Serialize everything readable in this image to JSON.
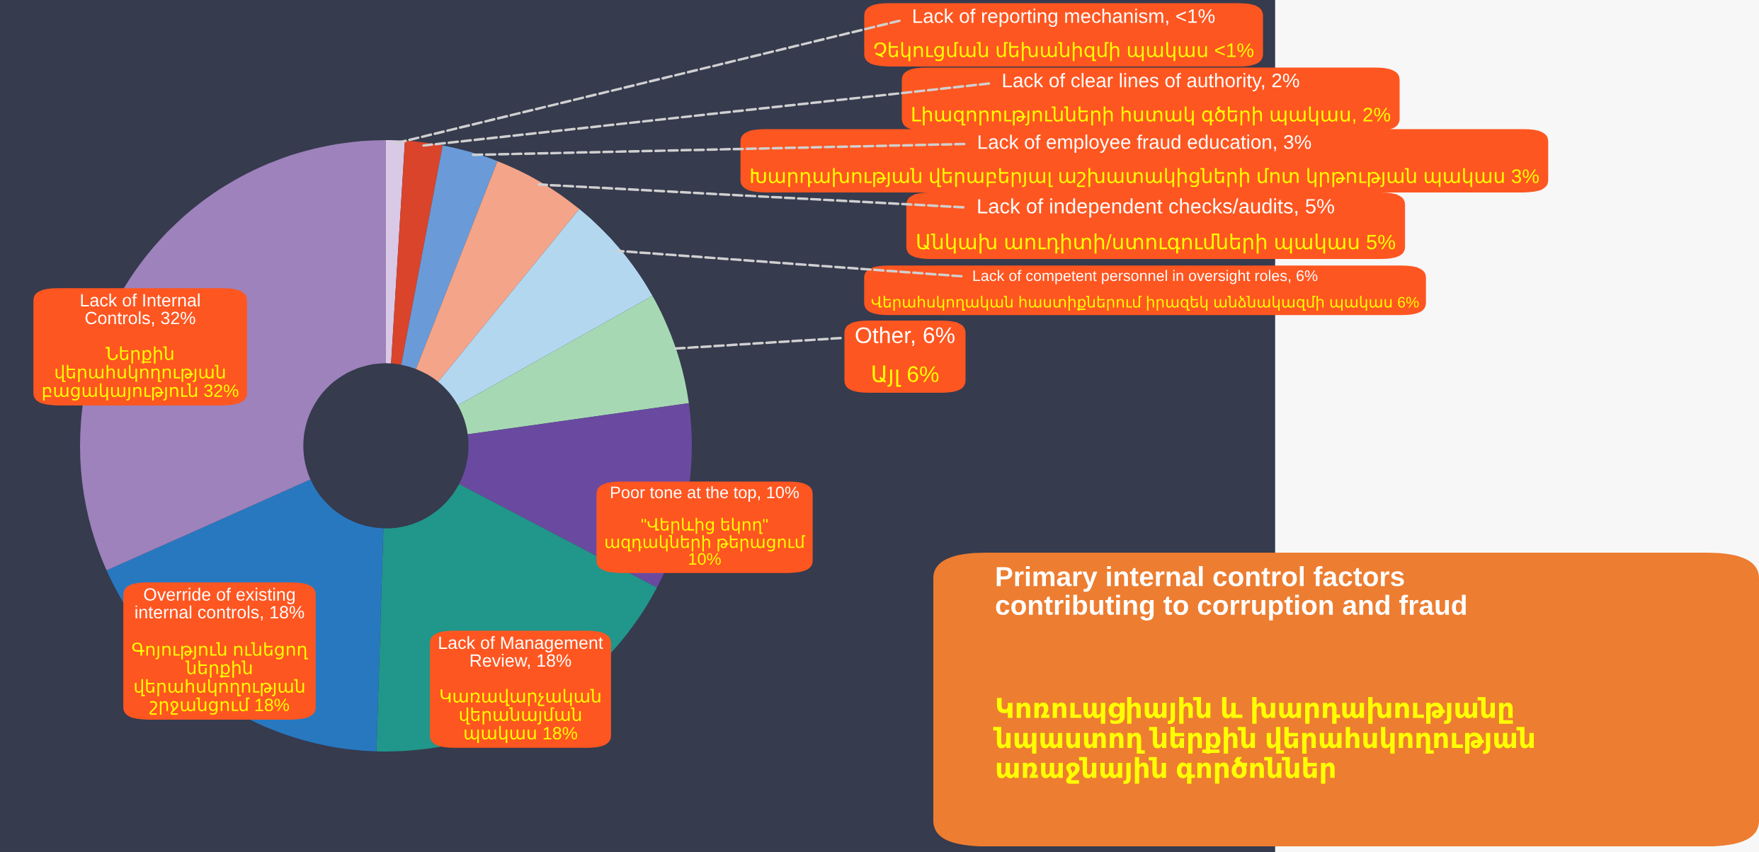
{
  "chart_data": {
    "type": "donut",
    "title": "Primary internal control factors\ncontributing to corruption and fraud",
    "subtitle": "Կոռուպցիային և խարդախությանը\nնպաստող ներքին վերահսկողության\nառաջնային գործոններ",
    "categories": [
      "Lack of reporting mechanism, <1%",
      "Lack of clear lines of authority, 2%",
      "Lack of employee fraud education, 3%",
      "Lack of independent checks/audits, 5%",
      "Lack of competent personnel in oversight roles, 6%",
      "Other, 6%",
      "Poor tone at the top, 10%",
      "Lack of Management\nReview, 18%",
      "Override of existing\ninternal controls, 18%",
      "Lack of Internal\nControls, 32%"
    ],
    "values": [
      1,
      2,
      3,
      5,
      6,
      6,
      10,
      18,
      18,
      32
    ],
    "colors": [
      "#d9c8e6",
      "#d9442b",
      "#6a9bd8",
      "#f4a488",
      "#b4d7f0",
      "#a6d9b3",
      "#6a4aa0",
      "#21968a",
      "#2878c0",
      "#9d82bb"
    ],
    "annotations": [
      "Չեկուցման մեխանիզմի պակաս <1%",
      "Լիազորությունների հստակ գծերի պակաս, 2%",
      "Խարդախության վերաբերյալ աշխատակիցների մոտ կրթության պակաս 3%",
      "Անկախ աուդիտի/ստուգումների պակաս 5%",
      "Վերահսկողական հաստիքներում իրազեկ անձնակազմի պակաս 6%",
      "Այլ 6%",
      "\"Վերևից եկող\"\nազդակների թերացում\n10%",
      "Կառավարչական\nվերանայման\nպակաս 18%",
      "Գոյություն ունեցող\nներքին\nվերահսկողության\nշրջանցում 18%",
      "Ներքին\nվերահսկողության\nբացակայություն 32%"
    ]
  }
}
